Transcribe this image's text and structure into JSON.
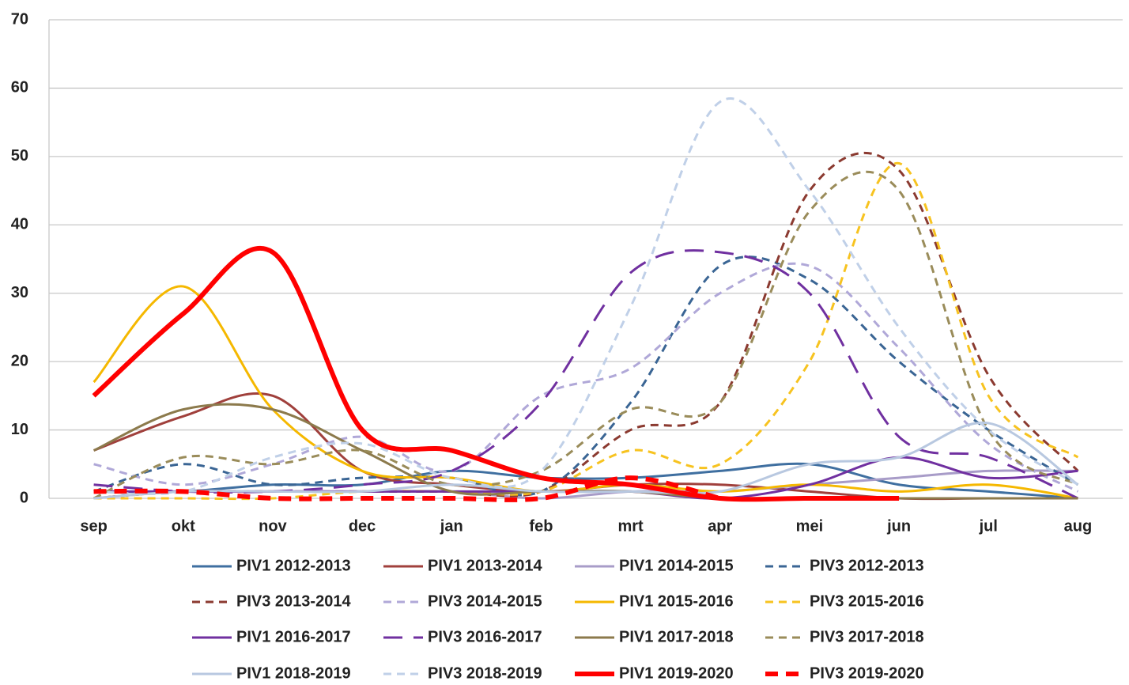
{
  "chart_data": {
    "type": "line",
    "categories": [
      "sep",
      "okt",
      "nov",
      "dec",
      "jan",
      "feb",
      "mrt",
      "apr",
      "mei",
      "jun",
      "jul",
      "aug"
    ],
    "ylim": [
      0,
      70
    ],
    "yticks": [
      0,
      10,
      20,
      30,
      40,
      50,
      60,
      70
    ],
    "grid": true,
    "smooth": true,
    "legend": "bottom",
    "series": [
      {
        "name": "PIV1 2012-2013",
        "color": "#3f6fa0",
        "dash": "solid",
        "values": [
          1,
          1,
          2,
          2,
          4,
          3,
          3,
          4,
          5,
          2,
          1,
          0
        ]
      },
      {
        "name": "PIV1 2013-2014",
        "color": "#a0403c",
        "dash": "solid",
        "values": [
          7,
          12,
          15,
          4,
          2,
          1,
          2,
          2,
          1,
          0,
          0,
          0
        ]
      },
      {
        "name": "PIV1 2014-2015",
        "color": "#a89cc8",
        "dash": "solid",
        "values": [
          0,
          1,
          1,
          1,
          1,
          0,
          1,
          1,
          2,
          3,
          4,
          4
        ]
      },
      {
        "name": "PIV3 2012-2013",
        "color": "#3a6594",
        "dash": "dashed",
        "values": [
          1,
          5,
          2,
          3,
          3,
          1,
          14,
          34,
          32,
          20,
          10,
          2
        ]
      },
      {
        "name": "PIV3 2013-2014",
        "color": "#8b3a30",
        "dash": "dashed",
        "values": [
          0,
          1,
          1,
          1,
          1,
          1,
          10,
          14,
          45,
          48,
          18,
          4
        ]
      },
      {
        "name": "PIV3 2014-2015",
        "color": "#b0a8d8",
        "dash": "dashed",
        "values": [
          5,
          2,
          5,
          9,
          4,
          15,
          19,
          30,
          34,
          22,
          8,
          1
        ]
      },
      {
        "name": "PIV1 2015-2016",
        "color": "#f5b800",
        "dash": "solid",
        "values": [
          17,
          31,
          13,
          4,
          3,
          1,
          2,
          1,
          2,
          1,
          2,
          0
        ]
      },
      {
        "name": "PIV3 2015-2016",
        "color": "#f7c320",
        "dash": "dashed",
        "values": [
          0,
          0,
          0,
          1,
          1,
          1,
          7,
          5,
          20,
          49,
          15,
          6
        ]
      },
      {
        "name": "PIV1 2016-2017",
        "color": "#7030a0",
        "dash": "solid",
        "values": [
          1,
          1,
          1,
          1,
          1,
          1,
          1,
          0,
          2,
          6,
          3,
          4
        ]
      },
      {
        "name": "PIV3 2016-2017",
        "color": "#7030a0",
        "dash": "longdash",
        "values": [
          2,
          1,
          1,
          2,
          4,
          14,
          33,
          36,
          30,
          9,
          6,
          0
        ]
      },
      {
        "name": "PIV1 2017-2018",
        "color": "#8c7a4c",
        "dash": "solid",
        "values": [
          7,
          13,
          13,
          7,
          1,
          1,
          1,
          0,
          0,
          0,
          0,
          0
        ]
      },
      {
        "name": "PIV3 2017-2018",
        "color": "#9a8c5a",
        "dash": "dashed",
        "values": [
          0,
          6,
          5,
          7,
          2,
          4,
          13,
          14,
          42,
          45,
          10,
          2
        ]
      },
      {
        "name": "PIV1 2018-2019",
        "color": "#b8c8e0",
        "dash": "solid",
        "values": [
          0,
          1,
          1,
          1,
          2,
          1,
          1,
          1,
          5,
          6,
          11,
          2
        ]
      },
      {
        "name": "PIV3 2018-2019",
        "color": "#c0d0e8",
        "dash": "dashed",
        "values": [
          1,
          1,
          6,
          8,
          3,
          4,
          28,
          58,
          45,
          25,
          10,
          2
        ]
      },
      {
        "name": "PIV1 2019-2020",
        "color": "#ff0000",
        "dash": "solid",
        "bold": true,
        "values": [
          15,
          27,
          36,
          10,
          7,
          3,
          2,
          0,
          0,
          0,
          null,
          null
        ]
      },
      {
        "name": "PIV3 2019-2020",
        "color": "#ff0000",
        "dash": "dashed",
        "bold": true,
        "values": [
          1,
          1,
          0,
          0,
          0,
          0,
          3,
          0,
          null,
          null,
          null,
          null
        ]
      }
    ]
  }
}
